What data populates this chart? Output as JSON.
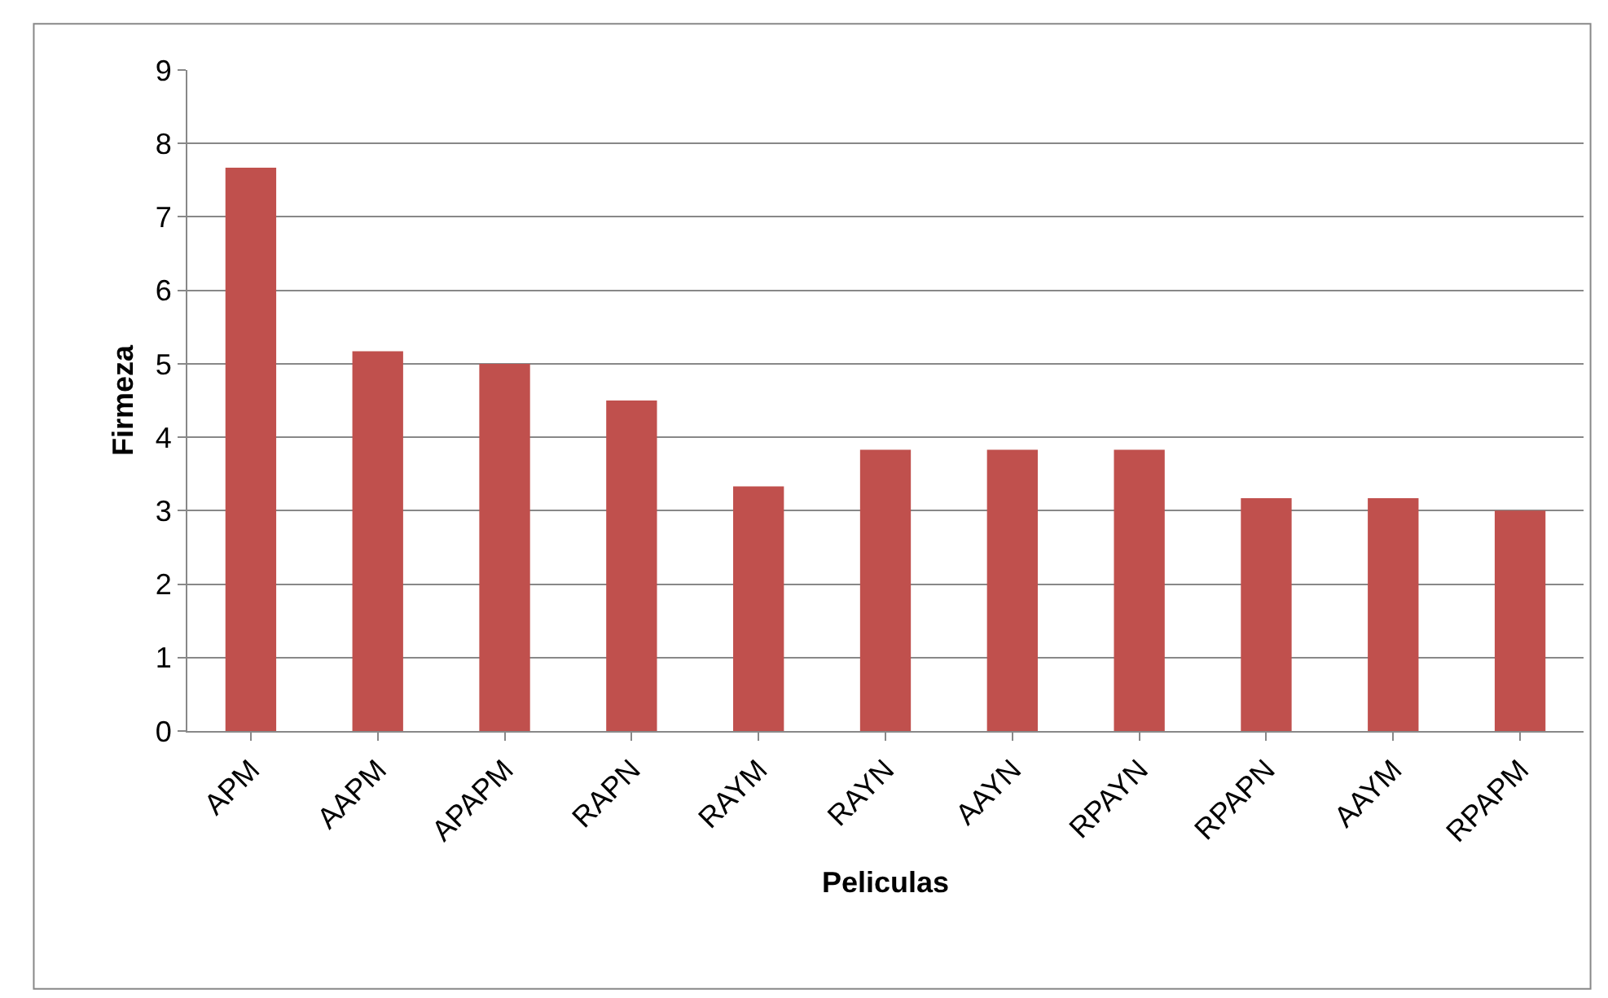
{
  "chart_data": {
    "type": "bar",
    "xlabel": "Peliculas",
    "ylabel": "Firmeza",
    "categories": [
      "APM",
      "AAPM",
      "APAPM",
      "RAPN",
      "RAYM",
      "RAYN",
      "AAYN",
      "RPAYN",
      "RPAPN",
      "AAYM",
      "RPAPM"
    ],
    "values": [
      7.67,
      5.17,
      5.0,
      4.5,
      3.33,
      3.83,
      3.83,
      3.83,
      3.17,
      3.17,
      3.0
    ],
    "color": "#c0504d",
    "ylim": [
      0,
      9
    ],
    "yticks": [
      0,
      1,
      2,
      3,
      4,
      5,
      6,
      7,
      8,
      9
    ],
    "grid": "y",
    "legend": false
  }
}
